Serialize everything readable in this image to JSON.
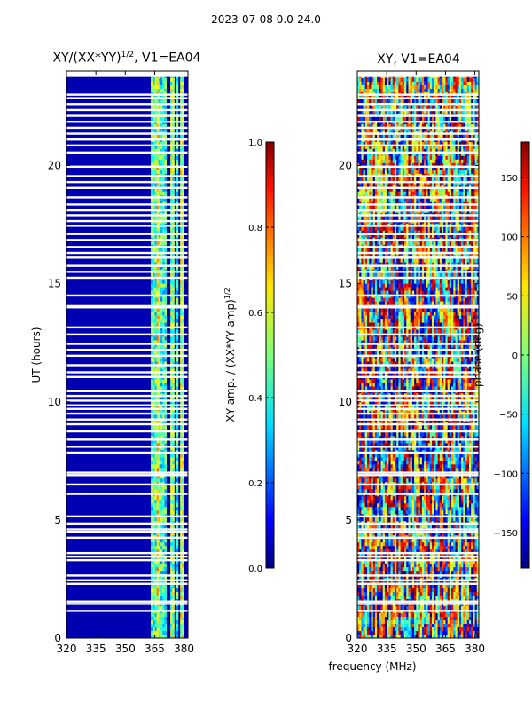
{
  "suptitle": "2023-07-08 0.0-24.0",
  "chart_data": [
    {
      "type": "heatmap",
      "title": "XY/(XX*YY)^{1/2}, V1=EA04",
      "title_main": "XY/(XX*YY)",
      "title_sup": "1/2",
      "title_tail": ", V1=EA04",
      "xlabel": "",
      "ylabel": "UT (hours)",
      "xlim": [
        320,
        382
      ],
      "ylim": [
        0,
        24
      ],
      "xticks": [
        "320",
        "335",
        "350",
        "365",
        "380"
      ],
      "yticks": [
        "0",
        "5",
        "10",
        "15",
        "20"
      ],
      "colorbar": {
        "label": "XY amp. / (XX*YY amp)^{1/2}",
        "label_main": "XY amp. / (XX*YY amp)",
        "label_sup": "1/2",
        "range": [
          0.0,
          1.0
        ],
        "ticks": [
          "0.0",
          "0.2",
          "0.4",
          "0.6",
          "0.8",
          "1.0"
        ],
        "colormap": "jet"
      },
      "background_value": 0.05,
      "bright_channels_mhz": [
        {
          "x0": 363,
          "x1": 366,
          "value": 0.45
        },
        {
          "x0": 366,
          "x1": 368,
          "value": 0.6
        },
        {
          "x0": 368,
          "x1": 371,
          "value": 0.42
        },
        {
          "x0": 373,
          "x1": 375,
          "value": 0.5
        },
        {
          "x0": 376,
          "x1": 377,
          "value": 0.4
        },
        {
          "x0": 378,
          "x1": 380,
          "value": 0.55
        }
      ]
    },
    {
      "type": "heatmap",
      "title": "XY, V1=EA04",
      "xlabel": "frequency (MHz)",
      "ylabel": "",
      "xlim": [
        320,
        382
      ],
      "ylim": [
        0,
        24
      ],
      "xticks": [
        "320",
        "335",
        "350",
        "365",
        "380"
      ],
      "yticks": [
        "0",
        "5",
        "10",
        "15",
        "20"
      ],
      "colorbar": {
        "label": "phase (deg)",
        "range": [
          -180,
          180
        ],
        "ticks": [
          "−150",
          "−100",
          "−50",
          "0",
          "50",
          "100",
          "150"
        ],
        "tick_values": [
          -150,
          -100,
          -50,
          0,
          50,
          100,
          150
        ],
        "colormap": "jet"
      }
    }
  ],
  "flagged_hours": [
    1.15,
    1.45,
    1.55,
    2.3,
    2.45,
    2.65,
    3.3,
    3.45,
    3.6,
    4.25,
    4.5,
    4.6,
    4.85,
    5.15,
    6.1,
    6.5,
    6.9,
    7.0,
    7.85,
    8.1,
    8.4,
    8.75,
    9.05,
    9.25,
    9.5,
    9.7,
    9.85,
    10.05,
    10.25,
    10.45,
    11.05,
    11.25,
    11.55,
    11.95,
    12.2,
    12.45,
    12.85,
    13.15,
    14.0,
    14.05,
    14.5,
    15.25,
    15.5,
    15.75,
    16.1,
    16.3,
    16.55,
    16.85,
    17.1,
    17.45,
    17.65,
    17.9,
    18.1,
    18.35,
    18.65,
    19.05,
    19.3,
    19.55,
    19.95,
    20.55,
    20.85,
    21.1,
    21.35,
    21.6,
    21.85,
    22.1,
    22.35,
    22.6,
    22.85,
    23.0
  ]
}
